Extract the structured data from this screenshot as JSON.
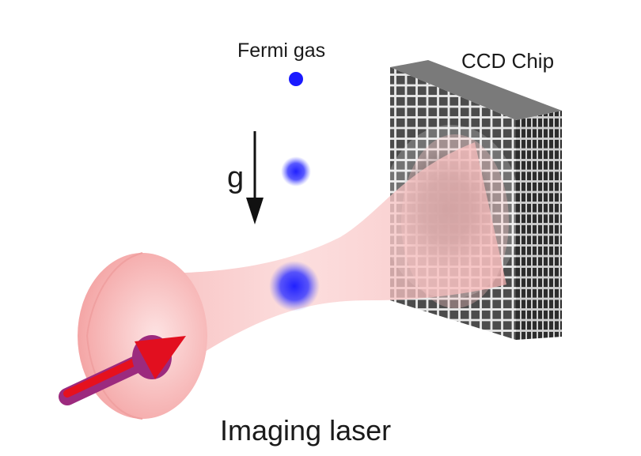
{
  "labels": {
    "fermi_gas": "Fermi gas",
    "ccd_chip": "CCD Chip",
    "gravity": "g",
    "imaging_laser": "Imaging laser"
  },
  "colors": {
    "atom_cloud": "#1a1aff",
    "laser_beam": "#f7b7b7",
    "laser_arrow": "#e8101e",
    "arrow_base": "#b0287e",
    "ccd_pixel": "#4a4a4a",
    "ccd_grid": "#e8e8e8",
    "absorption_shadow": "#101010"
  }
}
